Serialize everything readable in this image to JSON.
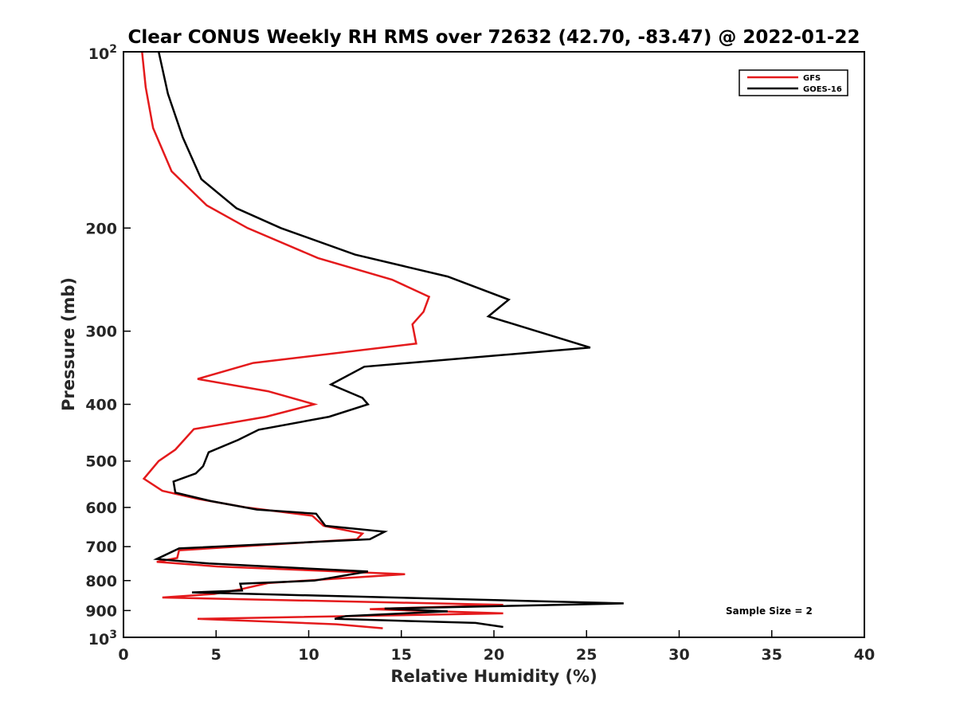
{
  "chart_data": {
    "type": "line",
    "title": "Clear CONUS Weekly RH RMS over 72632 (42.70, -83.47) @ 2022-01-22",
    "xlabel": "Relative Humidity (%)",
    "ylabel": "Pressure (mb)",
    "xlim": [
      0,
      40
    ],
    "ylim": [
      100,
      1000
    ],
    "y_scale": "log",
    "y_reversed": true,
    "x_ticks": [
      "0",
      "5",
      "10",
      "15",
      "20",
      "25",
      "30",
      "35",
      "40"
    ],
    "y_ticks": [
      {
        "value": 100,
        "base": "10",
        "exp": "2"
      },
      {
        "value": 200,
        "label": "200"
      },
      {
        "value": 300,
        "label": "300"
      },
      {
        "value": 400,
        "label": "400"
      },
      {
        "value": 500,
        "label": "500"
      },
      {
        "value": 600,
        "label": "600"
      },
      {
        "value": 700,
        "label": "700"
      },
      {
        "value": 800,
        "label": "800"
      },
      {
        "value": 900,
        "label": "900"
      },
      {
        "value": 1000,
        "base": "10",
        "exp": "3"
      }
    ],
    "legend": {
      "position": "top-right",
      "entries": [
        "GFS",
        "GOES-16"
      ]
    },
    "annotation": "Sample Size = 2",
    "series": [
      {
        "name": "GFS",
        "color": "#e41a1c",
        "points": [
          [
            1.0,
            100
          ],
          [
            1.2,
            115
          ],
          [
            1.6,
            135
          ],
          [
            2.6,
            160
          ],
          [
            4.5,
            183
          ],
          [
            6.7,
            200
          ],
          [
            10.5,
            225
          ],
          [
            14.5,
            245
          ],
          [
            16.5,
            262
          ],
          [
            16.2,
            278
          ],
          [
            15.6,
            292
          ],
          [
            15.8,
            315
          ],
          [
            7.0,
            340
          ],
          [
            4.0,
            362
          ],
          [
            7.8,
            380
          ],
          [
            10.3,
            400
          ],
          [
            7.7,
            420
          ],
          [
            3.8,
            441
          ],
          [
            2.8,
            478
          ],
          [
            1.9,
            500
          ],
          [
            1.1,
            536
          ],
          [
            2.1,
            562
          ],
          [
            4.0,
            580
          ],
          [
            6.6,
            600
          ],
          [
            10.2,
            620
          ],
          [
            10.8,
            645
          ],
          [
            12.9,
            665
          ],
          [
            12.6,
            680
          ],
          [
            3.0,
            710
          ],
          [
            2.9,
            732
          ],
          [
            1.8,
            743
          ],
          [
            5.1,
            757
          ],
          [
            15.2,
            780
          ],
          [
            7.8,
            808
          ],
          [
            6.3,
            828
          ],
          [
            4.9,
            843
          ],
          [
            2.1,
            855
          ],
          [
            20.5,
            880
          ],
          [
            13.3,
            895
          ],
          [
            20.5,
            910
          ],
          [
            4.0,
            930
          ],
          [
            11.5,
            950
          ],
          [
            14.0,
            965
          ]
        ]
      },
      {
        "name": "GOES-16",
        "color": "#000000",
        "points": [
          [
            1.9,
            100
          ],
          [
            2.4,
            118
          ],
          [
            3.2,
            140
          ],
          [
            4.2,
            165
          ],
          [
            6.1,
            185
          ],
          [
            8.5,
            200
          ],
          [
            12.5,
            222
          ],
          [
            17.5,
            242
          ],
          [
            20.8,
            265
          ],
          [
            19.7,
            283
          ],
          [
            25.2,
            320
          ],
          [
            13.0,
            345
          ],
          [
            11.2,
            370
          ],
          [
            12.9,
            390
          ],
          [
            13.2,
            400
          ],
          [
            11.1,
            420
          ],
          [
            7.3,
            442
          ],
          [
            6.2,
            460
          ],
          [
            4.6,
            483
          ],
          [
            4.3,
            510
          ],
          [
            3.9,
            525
          ],
          [
            2.7,
            542
          ],
          [
            2.8,
            566
          ],
          [
            4.7,
            585
          ],
          [
            7.2,
            605
          ],
          [
            10.4,
            615
          ],
          [
            10.9,
            645
          ],
          [
            14.1,
            660
          ],
          [
            13.3,
            680
          ],
          [
            3.0,
            705
          ],
          [
            1.8,
            735
          ],
          [
            4.6,
            748
          ],
          [
            13.2,
            772
          ],
          [
            10.3,
            800
          ],
          [
            6.3,
            810
          ],
          [
            6.4,
            832
          ],
          [
            3.7,
            838
          ],
          [
            27.0,
            875
          ],
          [
            14.1,
            893
          ],
          [
            17.5,
            903
          ],
          [
            12.0,
            920
          ],
          [
            11.4,
            930
          ],
          [
            19.0,
            945
          ],
          [
            20.5,
            960
          ]
        ]
      }
    ]
  }
}
